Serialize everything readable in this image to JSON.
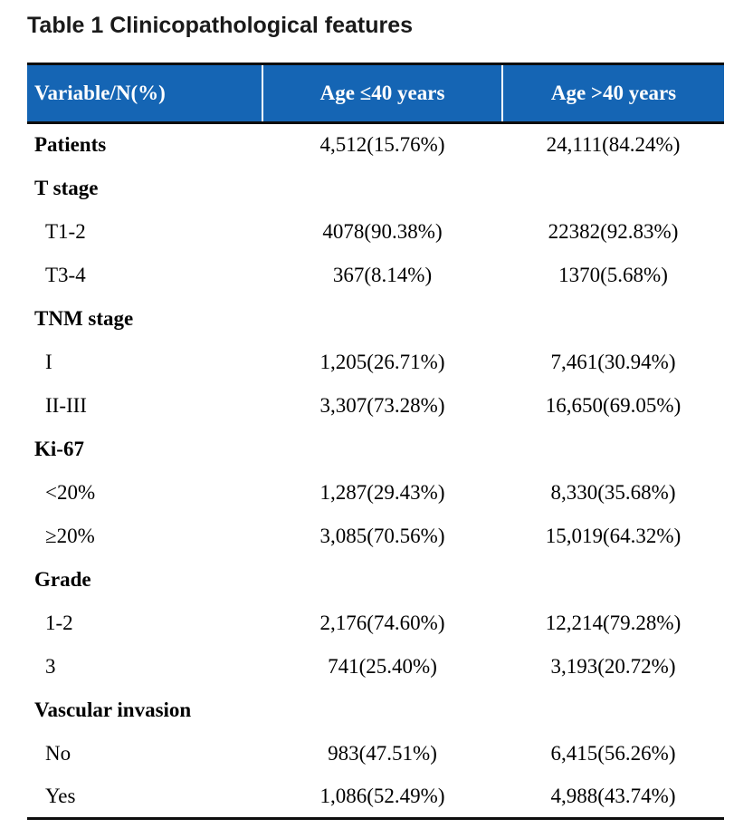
{
  "title": "Table 1 Clinicopathological features",
  "colors": {
    "header_bg": "#1565b4",
    "header_text": "#ffffff",
    "border": "#0d0d0d",
    "body_text": "#000000"
  },
  "table": {
    "columns": [
      "Variable/N(%)",
      "Age ≤40 years",
      "Age >40 years"
    ],
    "rows": [
      {
        "type": "data",
        "bold": true,
        "label": "Patients",
        "age_le40": "4,512(15.76%)",
        "age_gt40": "24,111(84.24%)"
      },
      {
        "type": "section",
        "bold": true,
        "label": "T stage",
        "age_le40": "",
        "age_gt40": ""
      },
      {
        "type": "data",
        "bold": false,
        "label": "T1-2",
        "age_le40": "4078(90.38%)",
        "age_gt40": "22382(92.83%)"
      },
      {
        "type": "data",
        "bold": false,
        "label": "T3-4",
        "age_le40": "367(8.14%)",
        "age_gt40": "1370(5.68%)"
      },
      {
        "type": "section",
        "bold": true,
        "label": "TNM stage",
        "age_le40": "",
        "age_gt40": ""
      },
      {
        "type": "data",
        "bold": false,
        "label": "I",
        "age_le40": "1,205(26.71%)",
        "age_gt40": "7,461(30.94%)"
      },
      {
        "type": "data",
        "bold": false,
        "label": "II-III",
        "age_le40": "3,307(73.28%)",
        "age_gt40": "16,650(69.05%)"
      },
      {
        "type": "section",
        "bold": true,
        "label": "Ki-67",
        "age_le40": "",
        "age_gt40": ""
      },
      {
        "type": "data",
        "bold": false,
        "label": "<20%",
        "age_le40": "1,287(29.43%)",
        "age_gt40": "8,330(35.68%)"
      },
      {
        "type": "data",
        "bold": false,
        "label": "≥20%",
        "age_le40": "3,085(70.56%)",
        "age_gt40": "15,019(64.32%)"
      },
      {
        "type": "section",
        "bold": true,
        "label": "Grade",
        "age_le40": "",
        "age_gt40": ""
      },
      {
        "type": "data",
        "bold": false,
        "label": "1-2",
        "age_le40": "2,176(74.60%)",
        "age_gt40": "12,214(79.28%)"
      },
      {
        "type": "data",
        "bold": false,
        "label": "3",
        "age_le40": "741(25.40%)",
        "age_gt40": "3,193(20.72%)"
      },
      {
        "type": "section",
        "bold": true,
        "label": "Vascular invasion",
        "age_le40": "",
        "age_gt40": ""
      },
      {
        "type": "data",
        "bold": false,
        "label": "No",
        "age_le40": "983(47.51%)",
        "age_gt40": "6,415(56.26%)"
      },
      {
        "type": "data",
        "bold": false,
        "label": "Yes",
        "age_le40": "1,086(52.49%)",
        "age_gt40": "4,988(43.74%)"
      }
    ]
  }
}
